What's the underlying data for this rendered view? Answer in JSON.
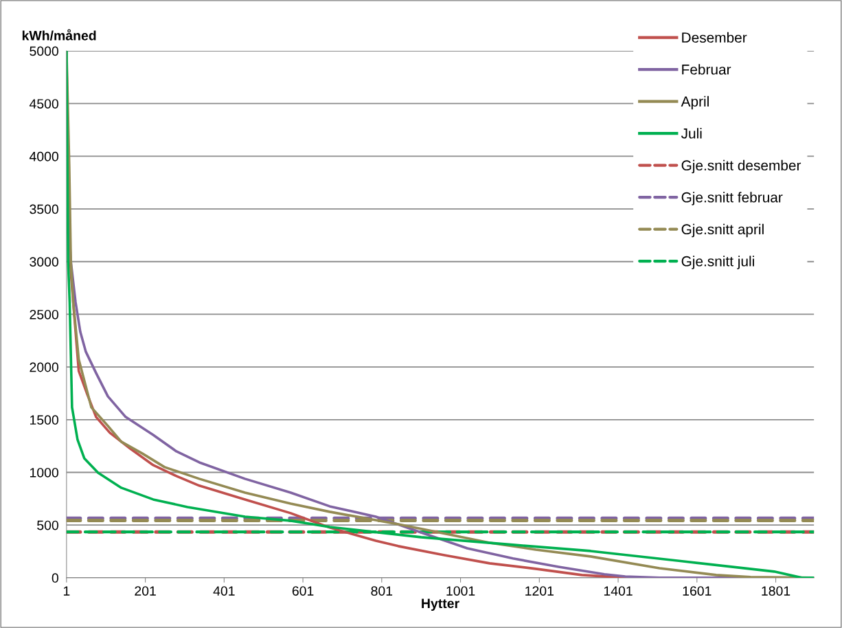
{
  "chart_data": {
    "type": "line",
    "xlabel": "Hytter",
    "ylabel": "kWh/måned",
    "xlim": [
      1,
      1898
    ],
    "xticks": [
      1,
      201,
      401,
      601,
      801,
      1001,
      1201,
      1401,
      1601,
      1801
    ],
    "ylim": [
      0,
      5000
    ],
    "yticks": [
      0,
      500,
      1000,
      1500,
      2000,
      2500,
      3000,
      3500,
      4000,
      4500,
      5000
    ],
    "grid": "y",
    "legend": "top right",
    "marker": "none",
    "series": [
      {
        "name": "Desember",
        "color": "#c0504d",
        "line_style": "solid",
        "x": [
          1,
          6,
          12,
          18,
          32,
          53,
          76,
          111,
          163,
          221,
          280,
          338,
          454,
          570,
          669,
          786,
          843,
          960,
          1075,
          1192,
          1309,
          1366,
          1419,
          1898
        ],
        "values": [
          5000,
          3500,
          2900,
          2614,
          1962,
          1747,
          1526,
          1376,
          1225,
          1069,
          965,
          874,
          743,
          613,
          476,
          352,
          300,
          215,
          137,
          85,
          26,
          13,
          0,
          0
        ]
      },
      {
        "name": "Februar",
        "color": "#8064a2",
        "line_style": "solid",
        "x": [
          1,
          5,
          12,
          24,
          36,
          50,
          76,
          106,
          151,
          221,
          280,
          338,
          454,
          570,
          669,
          786,
          901,
          1018,
          1134,
          1250,
          1366,
          1419,
          1506,
          1898
        ],
        "values": [
          5000,
          3500,
          3000,
          2614,
          2334,
          2145,
          1943,
          1721,
          1526,
          1356,
          1199,
          1095,
          939,
          808,
          678,
          580,
          430,
          280,
          183,
          104,
          33,
          12,
          0,
          0
        ]
      },
      {
        "name": "April",
        "color": "#948a54",
        "line_style": "solid",
        "x": [
          1,
          8,
          12,
          18,
          32,
          64,
          106,
          140,
          193,
          250,
          338,
          454,
          570,
          669,
          843,
          930,
          1075,
          1192,
          1331,
          1506,
          1650,
          1737,
          1898
        ],
        "values": [
          5000,
          3900,
          3000,
          2614,
          2073,
          1617,
          1441,
          1291,
          1180,
          1050,
          939,
          808,
          704,
          626,
          508,
          443,
          332,
          267,
          202,
          91,
          26,
          7,
          0
        ]
      },
      {
        "name": "Juli",
        "color": "#00b050",
        "line_style": "solid",
        "x": [
          1,
          5,
          9,
          15,
          29,
          46,
          81,
          140,
          221,
          308,
          454,
          570,
          669,
          901,
          1134,
          1331,
          1563,
          1797,
          1867,
          1898
        ],
        "values": [
          5000,
          3000,
          2614,
          1617,
          1310,
          1134,
          997,
          854,
          743,
          671,
          580,
          541,
          482,
          385,
          313,
          254,
          157,
          59,
          0,
          0
        ]
      },
      {
        "name": "Gje.snitt desember",
        "color": "#c0504d",
        "line_style": "dashed",
        "x": [
          1,
          1898
        ],
        "values": [
          435,
          435
        ]
      },
      {
        "name": "Gje.snitt februar",
        "color": "#8064a2",
        "line_style": "dashed",
        "x": [
          1,
          1898
        ],
        "values": [
          565,
          565
        ]
      },
      {
        "name": "Gje.snitt april",
        "color": "#948a54",
        "line_style": "dashed",
        "x": [
          1,
          1898
        ],
        "values": [
          543,
          543
        ]
      },
      {
        "name": "Gje.snitt juli",
        "color": "#00b050",
        "line_style": "dashed",
        "x": [
          1,
          1898
        ],
        "values": [
          435,
          435
        ]
      }
    ]
  }
}
